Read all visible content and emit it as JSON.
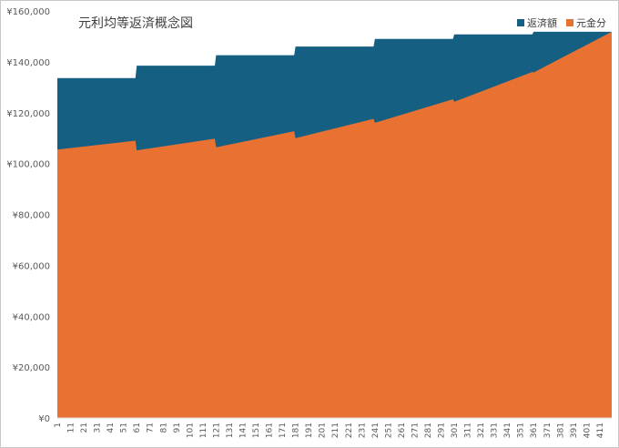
{
  "chart_data": {
    "type": "area",
    "title": "元利均等返済概念図",
    "stacked": true,
    "x_start": 1,
    "x_end": 420,
    "xtick_labels": [
      "1",
      "11",
      "21",
      "31",
      "41",
      "51",
      "61",
      "71",
      "81",
      "91",
      "101",
      "111",
      "121",
      "131",
      "141",
      "151",
      "161",
      "171",
      "181",
      "191",
      "201",
      "211",
      "221",
      "231",
      "241",
      "251",
      "261",
      "271",
      "281",
      "291",
      "301",
      "311",
      "321",
      "331",
      "341",
      "351",
      "361",
      "371",
      "381",
      "391",
      "401",
      "411"
    ],
    "ylim": [
      0,
      160000
    ],
    "ytick_labels": [
      "¥0",
      "¥20,000",
      "¥40,000",
      "¥60,000",
      "¥80,000",
      "¥100,000",
      "¥120,000",
      "¥140,000",
      "¥160,000"
    ],
    "ytick_values": [
      0,
      20000,
      40000,
      60000,
      80000,
      100000,
      120000,
      140000,
      160000
    ],
    "legend_position": "top-right",
    "grid": false,
    "series": [
      {
        "name": "元金分",
        "color": "#E97132",
        "points": [
          [
            1,
            105500
          ],
          [
            60,
            109000
          ],
          [
            61,
            105200
          ],
          [
            120,
            109800
          ],
          [
            121,
            106400
          ],
          [
            180,
            112700
          ],
          [
            181,
            110000
          ],
          [
            240,
            117600
          ],
          [
            241,
            116000
          ],
          [
            300,
            125300
          ],
          [
            301,
            124300
          ],
          [
            360,
            136000
          ],
          [
            361,
            135800
          ],
          [
            420,
            151800
          ]
        ]
      },
      {
        "name": "返済額",
        "color": "#156082",
        "points": [
          [
            1,
            133600
          ],
          [
            60,
            133600
          ],
          [
            61,
            138500
          ],
          [
            120,
            138500
          ],
          [
            121,
            142600
          ],
          [
            180,
            142600
          ],
          [
            181,
            146000
          ],
          [
            240,
            146000
          ],
          [
            241,
            149000
          ],
          [
            300,
            149000
          ],
          [
            301,
            150800
          ],
          [
            360,
            150800
          ],
          [
            361,
            151800
          ],
          [
            420,
            151800
          ]
        ]
      }
    ]
  }
}
